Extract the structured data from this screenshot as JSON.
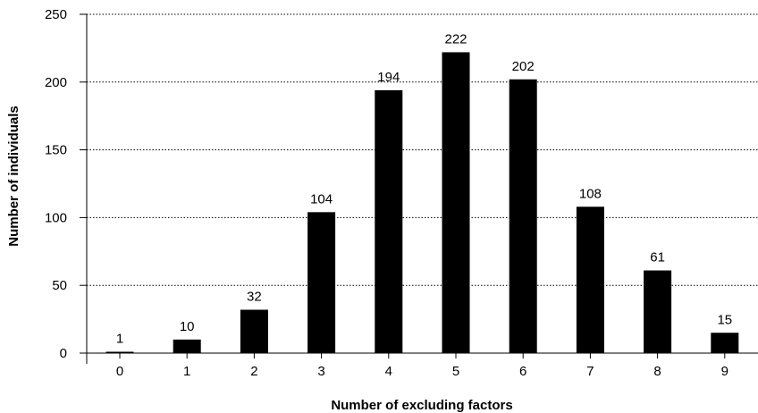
{
  "chart_data": {
    "type": "bar",
    "categories": [
      "0",
      "1",
      "2",
      "3",
      "4",
      "5",
      "6",
      "7",
      "8",
      "9"
    ],
    "values": [
      1,
      10,
      32,
      104,
      194,
      222,
      202,
      108,
      61,
      15
    ],
    "data_labels": [
      "1",
      "10",
      "32",
      "104",
      "194",
      "222",
      "202",
      "108",
      "61",
      "15"
    ],
    "xlabel": "Number of excluding factors",
    "ylabel": "Number of individuals",
    "ylim": [
      0,
      250
    ],
    "yticks": [
      "0",
      "50",
      "100",
      "150",
      "200",
      "250"
    ],
    "grid": "horizontal dotted",
    "bar_color": "#000000"
  }
}
